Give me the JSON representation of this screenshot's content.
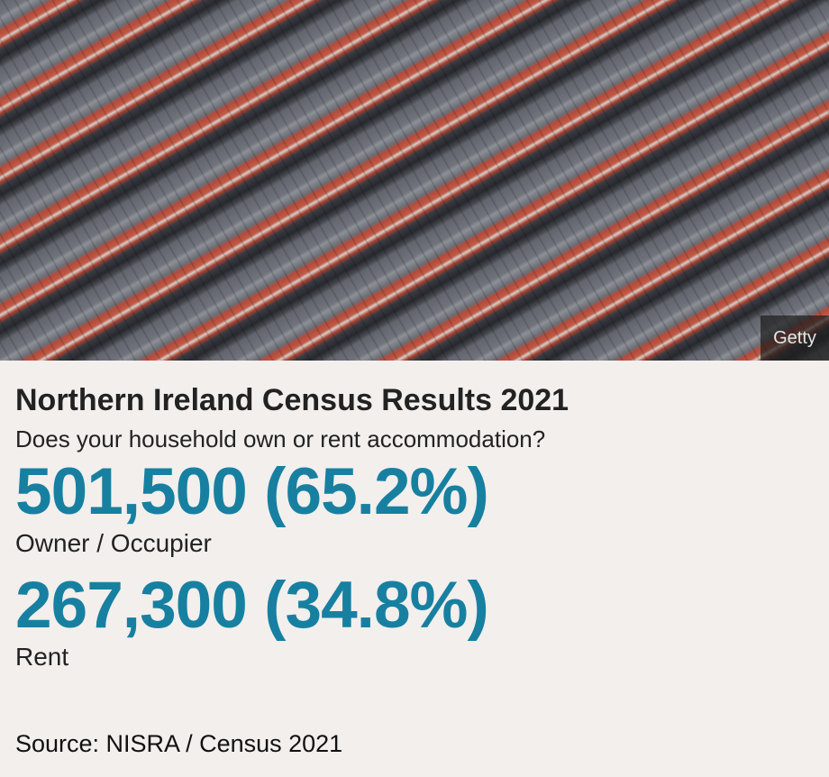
{
  "image": {
    "description": "Aerial photo of rows of terraced houses",
    "credit": "Getty"
  },
  "title": "Northern Ireland Census Results 2021",
  "subtitle": "Does your household own or rent accommodation?",
  "stats": [
    {
      "value": "501,500 (65.2%)",
      "label": "Owner / Occupier"
    },
    {
      "value": "267,300 (34.8%)",
      "label": "Rent"
    }
  ],
  "source": "Source: NISRA / Census 2021",
  "colors": {
    "accent": "#1780a1",
    "background": "#f2efed",
    "text": "#222222"
  }
}
